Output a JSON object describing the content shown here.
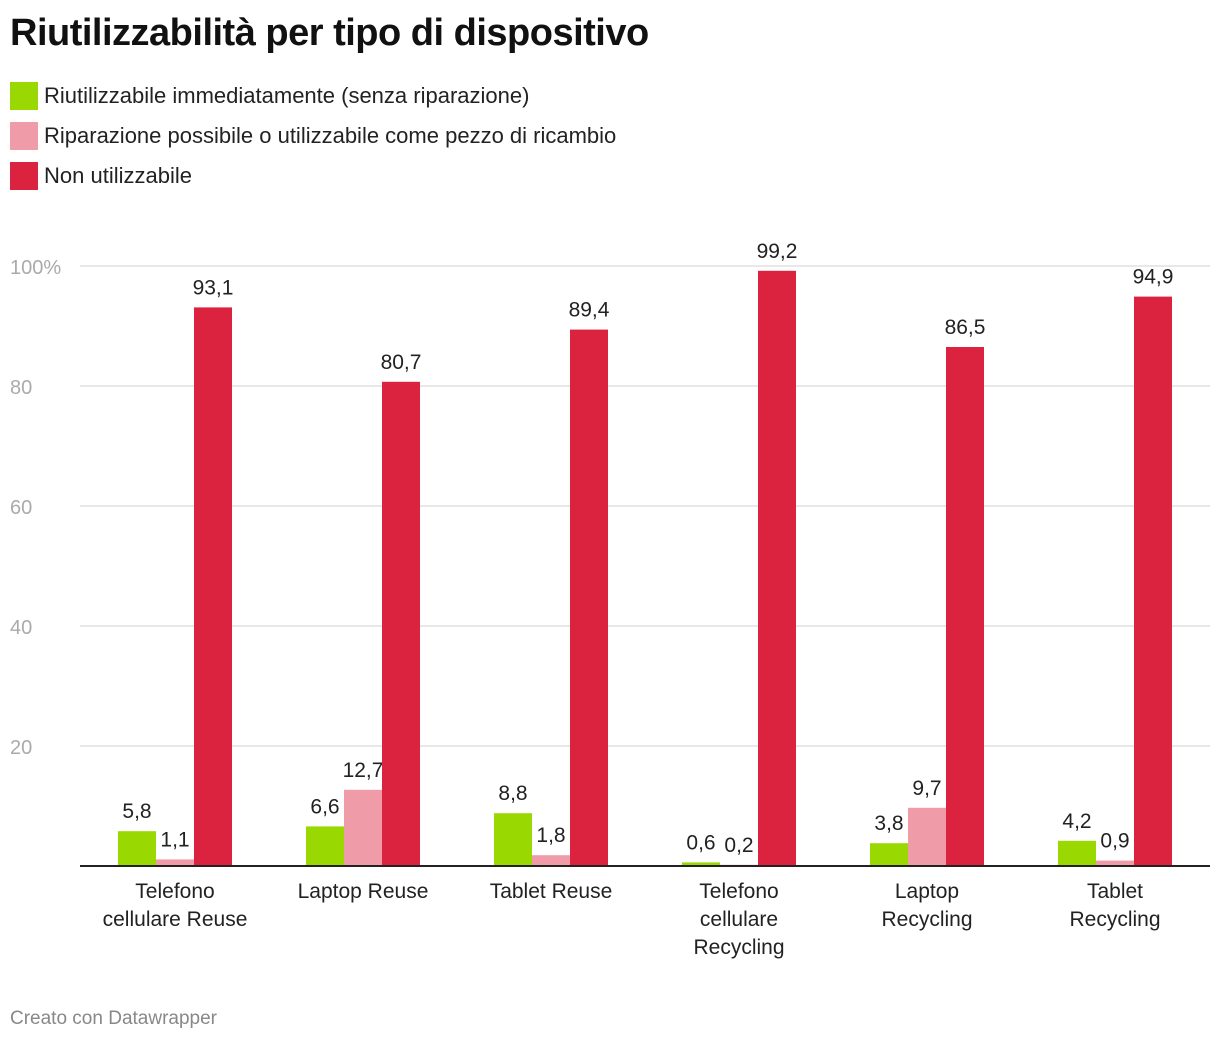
{
  "title": "Riutilizzabilità per tipo di dispositivo",
  "footer": "Creato con Datawrapper",
  "chart_data": {
    "type": "bar",
    "title": "Riutilizzabilità per tipo di dispositivo",
    "categories": [
      [
        "Telefono",
        "cellulare Reuse"
      ],
      [
        "Laptop Reuse"
      ],
      [
        "Tablet Reuse"
      ],
      [
        "Telefono",
        "cellulare",
        "Recycling"
      ],
      [
        "Laptop",
        "Recycling"
      ],
      [
        "Tablet",
        "Recycling"
      ]
    ],
    "series": [
      {
        "name": "Riutilizzabile immediatamente (senza riparazione)",
        "color": "#99d800",
        "values": [
          5.8,
          6.6,
          8.8,
          0.6,
          3.8,
          4.2
        ],
        "labels": [
          "5,8",
          "6,6",
          "8,8",
          "0,6",
          "3,8",
          "4,2"
        ]
      },
      {
        "name": "Riparazione possibile o utilizzabile come pezzo di ricambio",
        "color": "#ef9ca8",
        "values": [
          1.1,
          12.7,
          1.8,
          0.2,
          9.7,
          0.9
        ],
        "labels": [
          "1,1",
          "12,7",
          "1,8",
          "0,2",
          "9,7",
          "0,9"
        ]
      },
      {
        "name": "Non utilizzabile",
        "color": "#db223f",
        "values": [
          93.1,
          80.7,
          89.4,
          99.2,
          86.5,
          94.9
        ],
        "labels": [
          "93,1",
          "80,7",
          "89,4",
          "99,2",
          "86,5",
          "94,9"
        ]
      }
    ],
    "yticks": [
      20,
      40,
      60,
      80,
      100
    ],
    "ytick_labels": [
      "20",
      "40",
      "60",
      "80",
      "100%"
    ],
    "ylim": [
      0,
      100
    ],
    "grid": true,
    "legend": "top-left",
    "xlabel": "",
    "ylabel": ""
  }
}
